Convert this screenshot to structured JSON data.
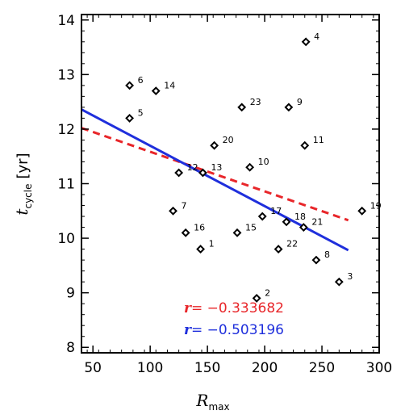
{
  "chart_data": {
    "type": "scatter",
    "xlabel": "R",
    "xlabel_sub": "max",
    "ylabel": "t",
    "ylabel_sub": "cycle",
    "ylabel_unit": "[yr]",
    "xlim": [
      40,
      300
    ],
    "ylim": [
      7.9,
      14.1
    ],
    "xticks": [
      "50",
      "100",
      "150",
      "200",
      "250",
      "300"
    ],
    "yticks": [
      "8",
      "9",
      "10",
      "11",
      "12",
      "13",
      "14"
    ],
    "grid": false,
    "points": [
      {
        "label": "1",
        "x": 144,
        "y": 9.8
      },
      {
        "label": "2",
        "x": 193,
        "y": 8.9
      },
      {
        "label": "3",
        "x": 265,
        "y": 9.2
      },
      {
        "label": "4",
        "x": 236,
        "y": 13.6
      },
      {
        "label": "5",
        "x": 82,
        "y": 12.2
      },
      {
        "label": "6",
        "x": 82,
        "y": 12.8
      },
      {
        "label": "7",
        "x": 120,
        "y": 10.5
      },
      {
        "label": "8",
        "x": 245,
        "y": 9.6
      },
      {
        "label": "9",
        "x": 221,
        "y": 12.4
      },
      {
        "label": "10",
        "x": 187,
        "y": 11.3
      },
      {
        "label": "11",
        "x": 235,
        "y": 11.7
      },
      {
        "label": "12",
        "x": 125,
        "y": 11.2
      },
      {
        "label": "13",
        "x": 146,
        "y": 11.2
      },
      {
        "label": "14",
        "x": 105,
        "y": 12.7
      },
      {
        "label": "15",
        "x": 176,
        "y": 10.1
      },
      {
        "label": "16",
        "x": 131,
        "y": 10.1
      },
      {
        "label": "17",
        "x": 198,
        "y": 10.4
      },
      {
        "label": "18",
        "x": 219,
        "y": 10.3
      },
      {
        "label": "19",
        "x": 285,
        "y": 10.5
      },
      {
        "label": "20",
        "x": 156,
        "y": 11.7
      },
      {
        "label": "21",
        "x": 234,
        "y": 10.2
      },
      {
        "label": "22",
        "x": 212,
        "y": 9.8
      },
      {
        "label": "23",
        "x": 180,
        "y": 12.4
      }
    ],
    "fit_lines": [
      {
        "color": "#e8262a",
        "dash": true,
        "x": [
          40,
          273
        ],
        "y": [
          12.02,
          10.33
        ]
      },
      {
        "color": "#1f2fdc",
        "dash": false,
        "x": [
          40,
          273
        ],
        "y": [
          12.36,
          9.78
        ]
      }
    ],
    "annotations": [
      {
        "prefix": "r",
        "text": "= −0.333682",
        "color": "#e8262a"
      },
      {
        "prefix": "r",
        "text": "= −0.503196",
        "color": "#1f2fdc"
      }
    ]
  }
}
